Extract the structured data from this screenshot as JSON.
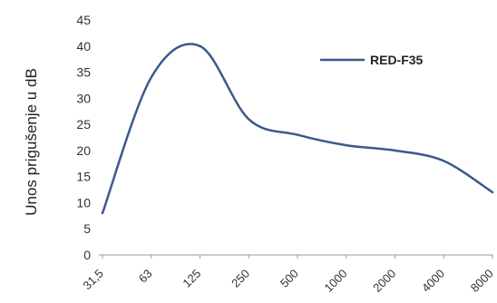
{
  "chart_data": {
    "type": "line",
    "title": "",
    "xlabel": "",
    "ylabel": "Unos prigušenje u dB",
    "categories": [
      "31,5",
      "63",
      "125",
      "250",
      "500",
      "1000",
      "2000",
      "4000",
      "8000"
    ],
    "series": [
      {
        "name": "RED-F35",
        "color": "#3b5a8a",
        "values": [
          8,
          34,
          40,
          26,
          23,
          21,
          20,
          18,
          12
        ]
      }
    ],
    "ylim": [
      0,
      45
    ],
    "yticks": [
      0,
      5,
      10,
      15,
      20,
      25,
      30,
      35,
      40,
      45
    ],
    "grid": false,
    "legend_position": "top-right"
  }
}
